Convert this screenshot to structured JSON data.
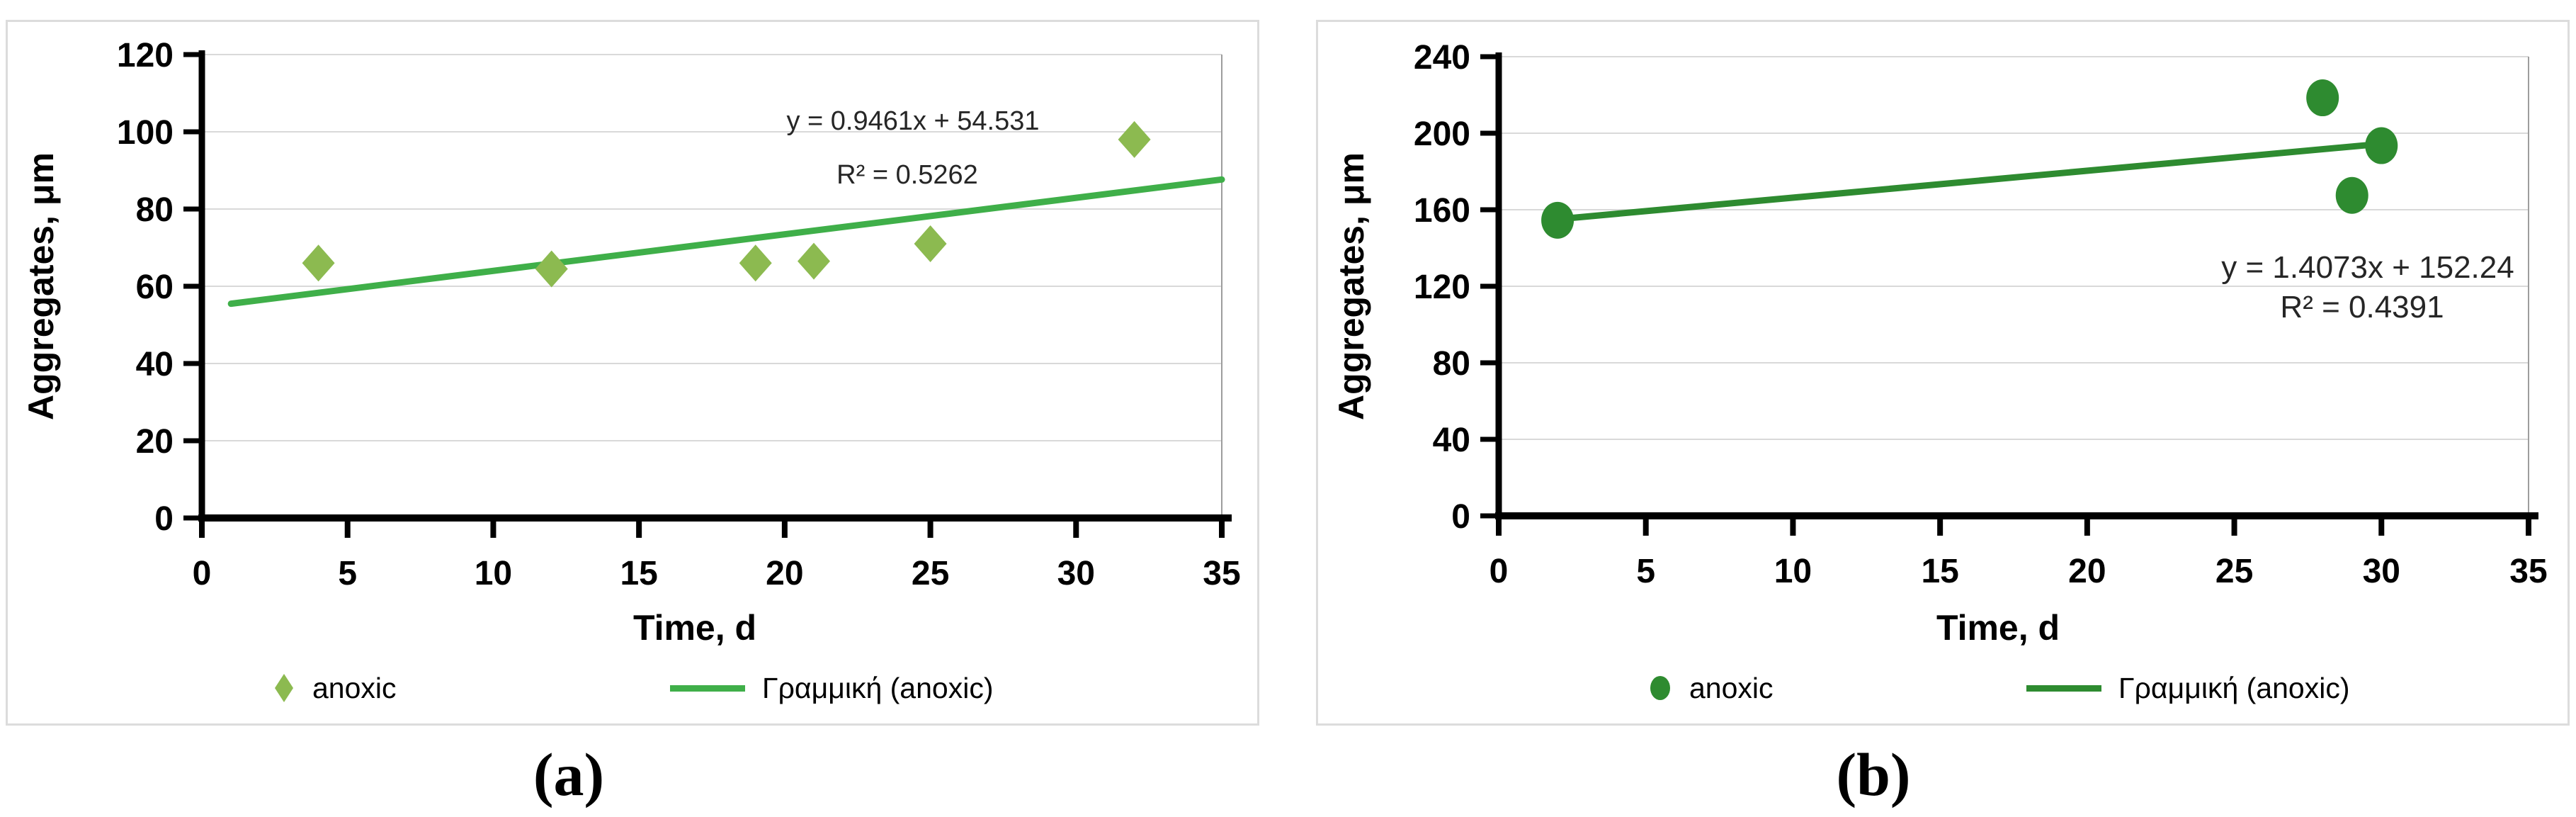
{
  "figure": {
    "caption_a": "(a)",
    "caption_b": "(b)"
  },
  "chart_data": [
    {
      "type": "scatter",
      "panel": "a",
      "xlabel": "Time, d",
      "ylabel": "Aggregates, μm",
      "xlim": [
        0,
        35
      ],
      "ylim": [
        0,
        120
      ],
      "xticks": [
        0,
        5,
        10,
        15,
        20,
        25,
        30,
        35
      ],
      "yticks": [
        0,
        20,
        40,
        60,
        80,
        100,
        120
      ],
      "grid": "horizontal",
      "legend_position": "bottom",
      "marker": "diamond",
      "colors": {
        "marker": "#8CBA50",
        "line": "#3FAF49",
        "grid": "#d9d9d9",
        "plot_border": "#9d9d9d",
        "axis": "#000000"
      },
      "series": [
        {
          "name": "anoxic",
          "points": [
            [
              4,
              66
            ],
            [
              12,
              64.5
            ],
            [
              19,
              66
            ],
            [
              21,
              66.5
            ],
            [
              25,
              71
            ],
            [
              32,
              98
            ]
          ]
        }
      ],
      "trendline": {
        "label": "Γραμμική (anoxic)",
        "slope": 0.9461,
        "intercept": 54.531,
        "x_start": 1,
        "x_end": 35,
        "equation": "y = 0.9461x + 54.531",
        "r_squared": "R² = 0.5262"
      }
    },
    {
      "type": "scatter",
      "panel": "b",
      "xlabel": "Time, d",
      "ylabel": "Aggregates, μm",
      "xlim": [
        0,
        35
      ],
      "ylim": [
        0,
        240
      ],
      "xticks": [
        0,
        5,
        10,
        15,
        20,
        25,
        30,
        35
      ],
      "yticks": [
        0,
        40,
        80,
        120,
        160,
        200,
        240
      ],
      "grid": "horizontal",
      "legend_position": "bottom",
      "marker": "circle",
      "colors": {
        "marker": "#2E8B30",
        "line": "#2E8B30",
        "grid": "#d9d9d9",
        "plot_border": "#9d9d9d",
        "axis": "#000000"
      },
      "series": [
        {
          "name": "anoxic",
          "points": [
            [
              2,
              154.5
            ],
            [
              28,
              218.5
            ],
            [
              29,
              167.5
            ],
            [
              30,
              193.5
            ]
          ]
        }
      ],
      "trendline": {
        "label": "Γραμμική (anoxic)",
        "slope": 1.4073,
        "intercept": 152.24,
        "x_start": 2,
        "x_end": 30,
        "equation": "y = 1.4073x + 152.24",
        "r_squared": "R² = 0.4391"
      }
    }
  ]
}
